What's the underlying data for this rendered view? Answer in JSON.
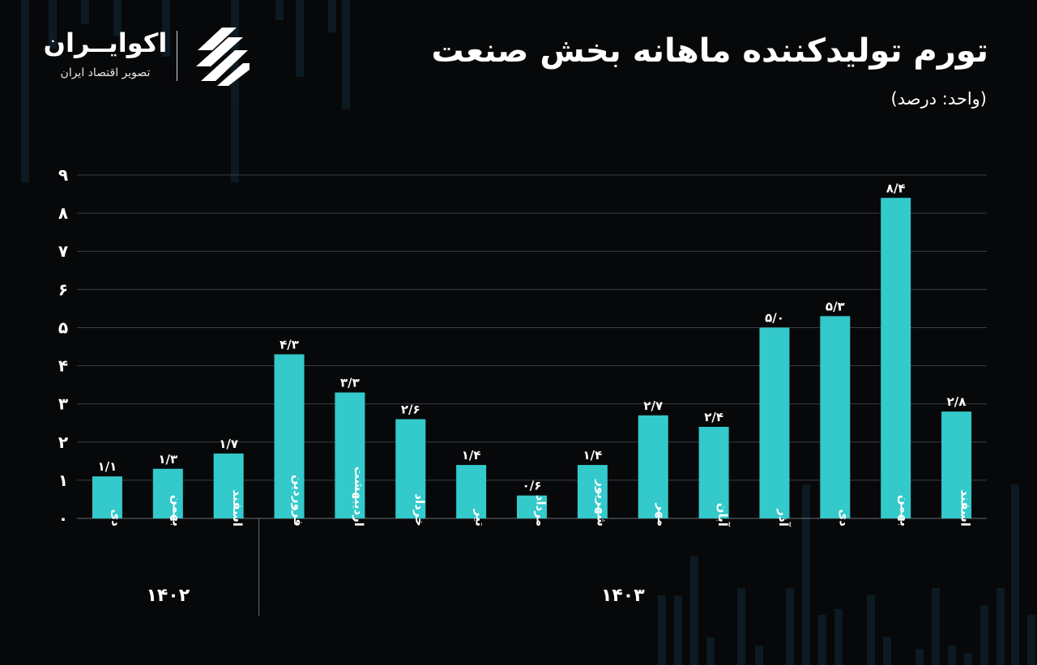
{
  "header": {
    "title": "تورم تولیدکننده ماهانه بخش صنعت",
    "subtitle": "(واحد: درصد)"
  },
  "logo": {
    "name": "اکوایــران",
    "tagline": "تصویر اقتصاد ایران"
  },
  "colors": {
    "background": "#07080a",
    "bar": "#34c9cb",
    "grid": "#3a3d40",
    "text": "#ffffff"
  },
  "chart_data": {
    "type": "bar",
    "title": "تورم تولیدکننده ماهانه بخش صنعت",
    "ylabel": "",
    "xlabel": "",
    "ylim": [
      0,
      9
    ],
    "grid": true,
    "yticks": [
      0,
      1,
      2,
      3,
      4,
      5,
      6,
      7,
      8,
      9
    ],
    "ytick_labels": [
      "۰",
      "۱",
      "۲",
      "۳",
      "۴",
      "۵",
      "۶",
      "۷",
      "۸",
      "۹"
    ],
    "categories": [
      "دی",
      "بهمن",
      "اسفند",
      "فروردین",
      "اردیبهشت",
      "خرداد",
      "تیر",
      "مرداد",
      "شهریور",
      "مهر",
      "آبان",
      "آذر",
      "دی",
      "بهمن",
      "اسفند"
    ],
    "values": [
      1.1,
      1.3,
      1.7,
      4.3,
      3.3,
      2.6,
      1.4,
      0.6,
      1.4,
      2.7,
      2.4,
      5.0,
      5.3,
      8.4,
      2.8
    ],
    "value_labels": [
      "۱/۱",
      "۱/۳",
      "۱/۷",
      "۴/۳",
      "۳/۳",
      "۲/۶",
      "۱/۴",
      "۰/۶",
      "۱/۴",
      "۲/۷",
      "۲/۴",
      "۵/۰",
      "۵/۳",
      "۸/۴",
      "۲/۸"
    ],
    "groups": [
      {
        "label": "۱۴۰۲",
        "start": 0,
        "end": 2
      },
      {
        "label": "۱۴۰۳",
        "start": 3,
        "end": 14
      }
    ]
  }
}
